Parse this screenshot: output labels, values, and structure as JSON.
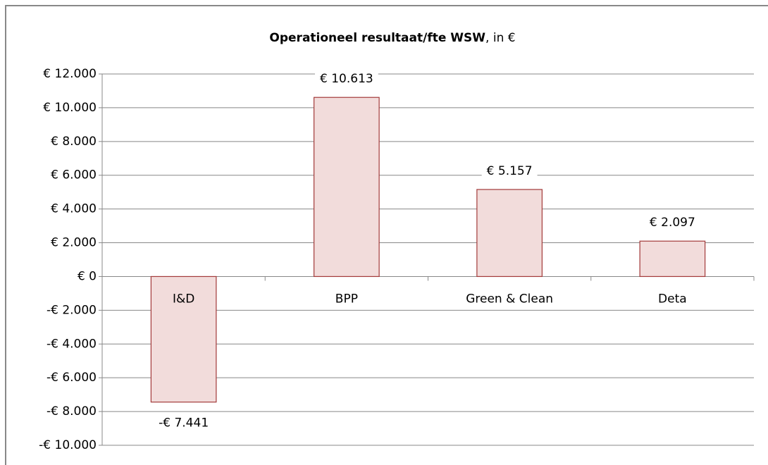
{
  "chart_data": {
    "type": "bar",
    "title": [
      "Operationeel resultaat/fte WSW",
      ", in €"
    ],
    "categories": [
      "I&D",
      "BPP",
      "Green & Clean",
      "Deta"
    ],
    "values": [
      -7441,
      10613,
      5157,
      2097
    ],
    "value_labels": [
      "-€ 7.441",
      "€ 10.613",
      "€ 5.157",
      "€ 2.097"
    ],
    "color": "#f2dcdb",
    "edge_color": "#a33a3a",
    "ylim": [
      -10000,
      12000
    ],
    "yticks": [
      {
        "value": -10000,
        "label": "-€ 10.000"
      },
      {
        "value": -8000,
        "label": "-€ 8.000"
      },
      {
        "value": -6000,
        "label": "-€ 6.000"
      },
      {
        "value": -4000,
        "label": "-€ 4.000"
      },
      {
        "value": -2000,
        "label": "-€ 2.000"
      },
      {
        "value": 0,
        "label": "€ 0"
      },
      {
        "value": 2000,
        "label": "€ 2.000"
      },
      {
        "value": 4000,
        "label": "€ 4.000"
      },
      {
        "value": 6000,
        "label": "€ 6.000"
      },
      {
        "value": 8000,
        "label": "€ 8.000"
      },
      {
        "value": 10000,
        "label": "€ 10.000"
      },
      {
        "value": 12000,
        "label": "€ 12.000"
      }
    ],
    "grid": true
  }
}
